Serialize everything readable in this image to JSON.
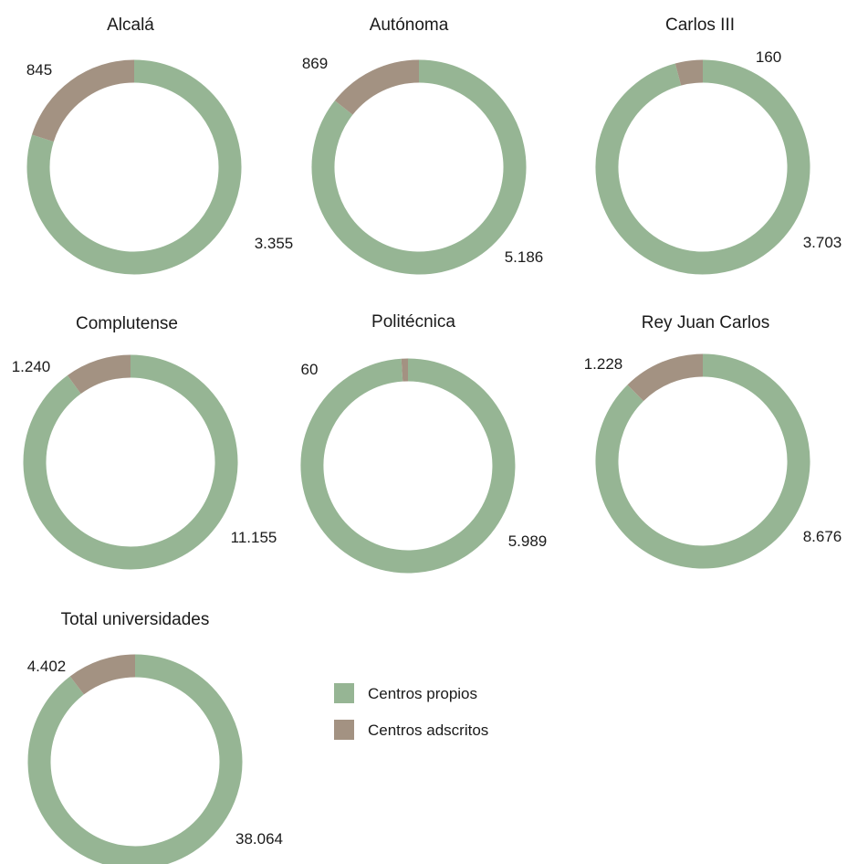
{
  "colors": {
    "propios": "#96b594",
    "adscritos": "#a39282"
  },
  "legend": [
    {
      "label": "Centros propios",
      "color": "#96b594"
    },
    {
      "label": "Centros adscritos",
      "color": "#a39282"
    }
  ],
  "chart_data": [
    {
      "type": "pie",
      "title": "Alcalá",
      "series": [
        {
          "name": "Centros propios",
          "value": 3355,
          "label": "3.355"
        },
        {
          "name": "Centros adscritos",
          "value": 845,
          "label": "845"
        }
      ]
    },
    {
      "type": "pie",
      "title": "Autónoma",
      "series": [
        {
          "name": "Centros propios",
          "value": 5186,
          "label": "5.186"
        },
        {
          "name": "Centros adscritos",
          "value": 869,
          "label": "869"
        }
      ]
    },
    {
      "type": "pie",
      "title": "Carlos III",
      "series": [
        {
          "name": "Centros propios",
          "value": 3703,
          "label": "3.703"
        },
        {
          "name": "Centros adscritos",
          "value": 160,
          "label": "160"
        }
      ]
    },
    {
      "type": "pie",
      "title": "Complutense",
      "series": [
        {
          "name": "Centros propios",
          "value": 11155,
          "label": "11.155"
        },
        {
          "name": "Centros adscritos",
          "value": 1240,
          "label": "1.240"
        }
      ]
    },
    {
      "type": "pie",
      "title": "Politécnica",
      "series": [
        {
          "name": "Centros propios",
          "value": 5989,
          "label": "5.989"
        },
        {
          "name": "Centros adscritos",
          "value": 60,
          "label": "60"
        }
      ]
    },
    {
      "type": "pie",
      "title": "Rey Juan Carlos",
      "series": [
        {
          "name": "Centros propios",
          "value": 8676,
          "label": "8.676"
        },
        {
          "name": "Centros adscritos",
          "value": 1228,
          "label": "1.228"
        }
      ]
    },
    {
      "type": "pie",
      "title": "Total universidades",
      "series": [
        {
          "name": "Centros propios",
          "value": 38064,
          "label": "38.064"
        },
        {
          "name": "Centros adscritos",
          "value": 4402,
          "label": "4.402"
        }
      ]
    }
  ]
}
